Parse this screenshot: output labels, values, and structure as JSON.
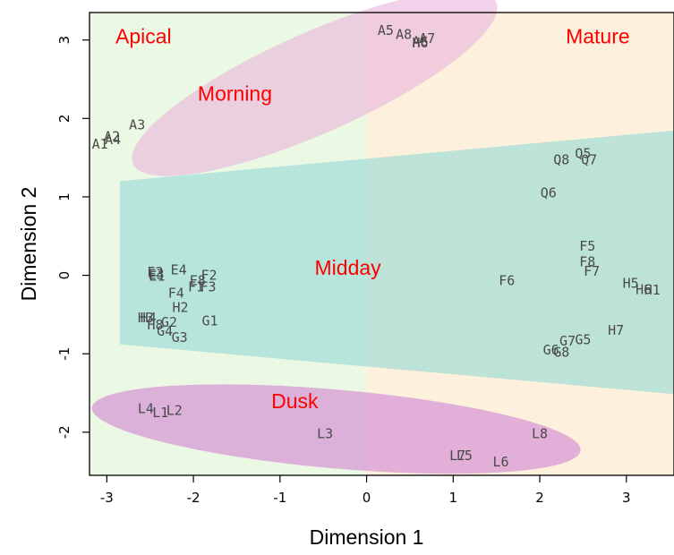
{
  "chart_data": {
    "type": "scatter",
    "xlabel": "Dimension 1",
    "ylabel": "Dimension 2",
    "xlim": [
      -3.2,
      3.55
    ],
    "ylim": [
      -2.55,
      3.35
    ],
    "x_ticks": [
      -3,
      -2,
      -1,
      0,
      1,
      2,
      3
    ],
    "x_tick_labels": [
      "-3",
      "-2",
      "-1",
      "0",
      "1",
      "2",
      "3"
    ],
    "y_ticks": [
      -2,
      -1,
      0,
      1,
      2,
      3
    ],
    "y_tick_labels": [
      "-2",
      "-1",
      "0",
      "1",
      "2",
      "3"
    ],
    "grid": false,
    "colors": {
      "apical_bg": "#eaf8e4",
      "mature_bg": "#fdf0dc",
      "morning": "#e9b4dc",
      "midday": "#9bdad6",
      "dusk": "#d79ad6",
      "region_text": "#ff0000",
      "point_text": "#4a4a4a"
    },
    "region_labels": [
      {
        "text": "Apical",
        "x": -2.9,
        "y": 3.05
      },
      {
        "text": "Mature",
        "x": 2.3,
        "y": 3.05
      },
      {
        "text": "Morning",
        "x": -1.95,
        "y": 2.32
      },
      {
        "text": "Midday",
        "x": -0.6,
        "y": 0.1
      },
      {
        "text": "Dusk",
        "x": -1.1,
        "y": -1.6
      }
    ],
    "points": [
      {
        "label": "A1",
        "x": -3.08,
        "y": 1.67
      },
      {
        "label": "A2",
        "x": -2.94,
        "y": 1.77
      },
      {
        "label": "A4",
        "x": -2.93,
        "y": 1.73
      },
      {
        "label": "A3",
        "x": -2.65,
        "y": 1.92
      },
      {
        "label": "A5",
        "x": 0.22,
        "y": 3.12
      },
      {
        "label": "A8",
        "x": 0.43,
        "y": 3.07
      },
      {
        "label": "A6",
        "x": 0.62,
        "y": 2.98
      },
      {
        "label": "A7",
        "x": 0.7,
        "y": 3.02
      },
      {
        "label": "H6",
        "x": 0.62,
        "y": 2.96
      },
      {
        "label": "Q8",
        "x": 2.25,
        "y": 1.47
      },
      {
        "label": "Q5",
        "x": 2.5,
        "y": 1.55
      },
      {
        "label": "Q7",
        "x": 2.57,
        "y": 1.47
      },
      {
        "label": "Q6",
        "x": 2.1,
        "y": 1.05
      },
      {
        "label": "E2",
        "x": -2.44,
        "y": 0.04
      },
      {
        "label": "E3",
        "x": -2.43,
        "y": 0.01
      },
      {
        "label": "E1",
        "x": -2.42,
        "y": -0.01
      },
      {
        "label": "E4",
        "x": -2.17,
        "y": 0.07
      },
      {
        "label": "F2",
        "x": -1.82,
        "y": 0.0
      },
      {
        "label": "E8",
        "x": -1.95,
        "y": -0.07
      },
      {
        "label": "F3",
        "x": -1.83,
        "y": -0.15
      },
      {
        "label": "F1",
        "x": -1.97,
        "y": -0.15
      },
      {
        "label": "F4",
        "x": -2.2,
        "y": -0.23
      },
      {
        "label": "H2",
        "x": -2.15,
        "y": -0.41
      },
      {
        "label": "H3",
        "x": -2.55,
        "y": -0.54
      },
      {
        "label": "H4",
        "x": -2.52,
        "y": -0.54
      },
      {
        "label": "H8",
        "x": -2.44,
        "y": -0.63
      },
      {
        "label": "G2",
        "x": -2.28,
        "y": -0.6
      },
      {
        "label": "G4",
        "x": -2.33,
        "y": -0.71
      },
      {
        "label": "G3",
        "x": -2.16,
        "y": -0.79
      },
      {
        "label": "G1",
        "x": -1.81,
        "y": -0.58
      },
      {
        "label": "F5",
        "x": 2.55,
        "y": 0.37
      },
      {
        "label": "F8",
        "x": 2.55,
        "y": 0.17
      },
      {
        "label": "F7",
        "x": 2.6,
        "y": 0.05
      },
      {
        "label": "F6",
        "x": 1.62,
        "y": -0.07
      },
      {
        "label": "H5",
        "x": 3.05,
        "y": -0.1
      },
      {
        "label": "H6",
        "x": 3.2,
        "y": -0.18
      },
      {
        "label": "H1",
        "x": 3.3,
        "y": -0.19
      },
      {
        "label": "H7",
        "x": 2.88,
        "y": -0.7
      },
      {
        "label": "G7",
        "x": 2.32,
        "y": -0.84
      },
      {
        "label": "G5",
        "x": 2.5,
        "y": -0.82
      },
      {
        "label": "G6",
        "x": 2.13,
        "y": -0.95
      },
      {
        "label": "G8",
        "x": 2.25,
        "y": -0.98
      },
      {
        "label": "L4",
        "x": -2.55,
        "y": -1.7
      },
      {
        "label": "L1",
        "x": -2.38,
        "y": -1.75
      },
      {
        "label": "L2",
        "x": -2.22,
        "y": -1.72
      },
      {
        "label": "L3",
        "x": -0.48,
        "y": -2.02
      },
      {
        "label": "L7",
        "x": 1.05,
        "y": -2.3
      },
      {
        "label": "L5",
        "x": 1.13,
        "y": -2.3
      },
      {
        "label": "L8",
        "x": 2.0,
        "y": -2.02
      },
      {
        "label": "L6",
        "x": 1.55,
        "y": -2.38
      }
    ]
  }
}
